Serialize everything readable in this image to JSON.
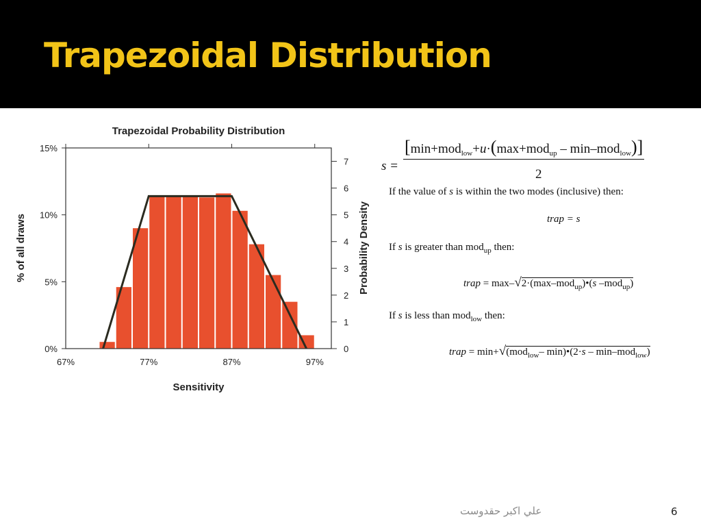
{
  "slide": {
    "title": "Trapezoidal Distribution",
    "footer_author": "علي اکبر حقدوست",
    "page_number": "6"
  },
  "chart_data": {
    "type": "bar",
    "title": "Trapezoidal Probability Distribution",
    "xlabel": "Sensitivity",
    "ylabel": "% of all draws",
    "y2label": "Probability Density",
    "x_ticks": [
      "67%",
      "77%",
      "87%",
      "97%"
    ],
    "x_tick_values": [
      67,
      77,
      87,
      97
    ],
    "xlim": [
      67,
      99
    ],
    "y_ticks": [
      "0%",
      "5%",
      "10%",
      "15%"
    ],
    "y_tick_values": [
      0,
      5,
      10,
      15
    ],
    "ylim": [
      0,
      15
    ],
    "y2_ticks": [
      "0",
      "1",
      "2",
      "3",
      "4",
      "5",
      "6",
      "7"
    ],
    "y2lim": [
      0,
      7.5
    ],
    "bar_color": "#e8502e",
    "bins": [
      [
        71,
        73
      ],
      [
        73,
        75
      ],
      [
        75,
        77
      ],
      [
        77,
        79
      ],
      [
        79,
        81
      ],
      [
        81,
        83
      ],
      [
        83,
        85
      ],
      [
        85,
        87
      ],
      [
        87,
        89
      ],
      [
        89,
        91
      ],
      [
        91,
        93
      ],
      [
        93,
        95
      ],
      [
        95,
        97
      ]
    ],
    "values": [
      0.5,
      4.6,
      9.0,
      11.4,
      11.4,
      11.4,
      11.3,
      11.6,
      10.3,
      7.8,
      5.5,
      3.5,
      1.0
    ],
    "trapezoid": {
      "min": 71.5,
      "mode_low": 77,
      "mode_up": 87,
      "max": 96,
      "peak_density": 5.7
    },
    "grid": false
  },
  "equations": {
    "s_lhs": "s =",
    "s_num_a": "min+mod",
    "sub_low": "low",
    "sub_up": "up",
    "s_num_b": "+",
    "s_num_u": "u",
    "s_num_c": "·",
    "s_num_d": "max+mod",
    "s_num_e": " – min–mod",
    "s_den": "2",
    "cond1_a": "If the value of ",
    "cond1_s": "s",
    "cond1_b": " is within the two modes (inclusive) then:",
    "trap_eq_s": "trap = s",
    "cond2_a": "If ",
    "cond2_s": "s",
    "cond2_b": " is greater than mod",
    "cond2_c": " then:",
    "trap2_lhs": "trap",
    "trap2_a": " = max–",
    "trap2_b": "2·(max–mod",
    "trap2_c": ")•(",
    "trap2_s": "s",
    "trap2_d": " –mod",
    "trap2_e": ")",
    "cond3_a": "If ",
    "cond3_s": "s",
    "cond3_b": " is less than mod",
    "cond3_c": " then:",
    "trap3_lhs": "trap",
    "trap3_a": " = min+",
    "trap3_b": "(mod",
    "trap3_c": "– min)•(2·",
    "trap3_s": "s",
    "trap3_d": " – min–mod",
    "trap3_e": ")"
  }
}
